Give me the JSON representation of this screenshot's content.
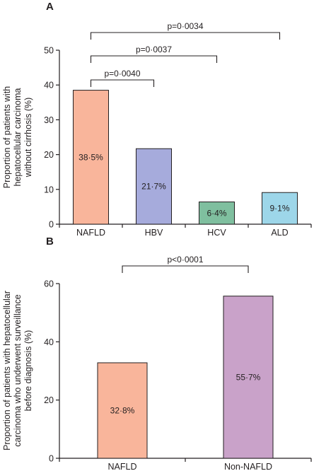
{
  "chart_data": [
    {
      "panel": "A",
      "type": "bar",
      "ylabel": [
        "Proportion of patients with",
        "hepatocellular carcinoma",
        "without cirrhosis (%)"
      ],
      "ylim": [
        0,
        50
      ],
      "yticks": [
        "0",
        "10",
        "20",
        "30",
        "40",
        "50"
      ],
      "categories": [
        "NAFLD",
        "HBV",
        "HCV",
        "ALD"
      ],
      "values": [
        38.5,
        21.7,
        6.4,
        9.1
      ],
      "bar_labels": [
        "38·5%",
        "21·7%",
        "6·4%",
        "9·1%"
      ],
      "colors": [
        "#f9b59b",
        "#a6abdc",
        "#7fbf9f",
        "#9dd6e9"
      ],
      "comparisons": [
        {
          "from": "NAFLD",
          "to": "HBV",
          "label": "p=0·0040"
        },
        {
          "from": "NAFLD",
          "to": "HCV",
          "label": "p=0·0037"
        },
        {
          "from": "NAFLD",
          "to": "ALD",
          "label": "p=0·0034"
        }
      ]
    },
    {
      "panel": "B",
      "type": "bar",
      "ylabel": [
        "Proportion of patients with hepatocellular",
        "carcinoma who underwent surveillance",
        "before diagnosis (%)"
      ],
      "ylim": [
        0,
        60
      ],
      "yticks": [
        "0",
        "20",
        "40",
        "60"
      ],
      "categories": [
        "NAFLD",
        "Non-NAFLD"
      ],
      "values": [
        32.8,
        55.7
      ],
      "bar_labels": [
        "32·8%",
        "55·7%"
      ],
      "colors": [
        "#f9b59b",
        "#c9a2c9"
      ],
      "comparisons": [
        {
          "from": "NAFLD",
          "to": "Non-NAFLD",
          "label": "p<0·0001"
        }
      ]
    }
  ]
}
